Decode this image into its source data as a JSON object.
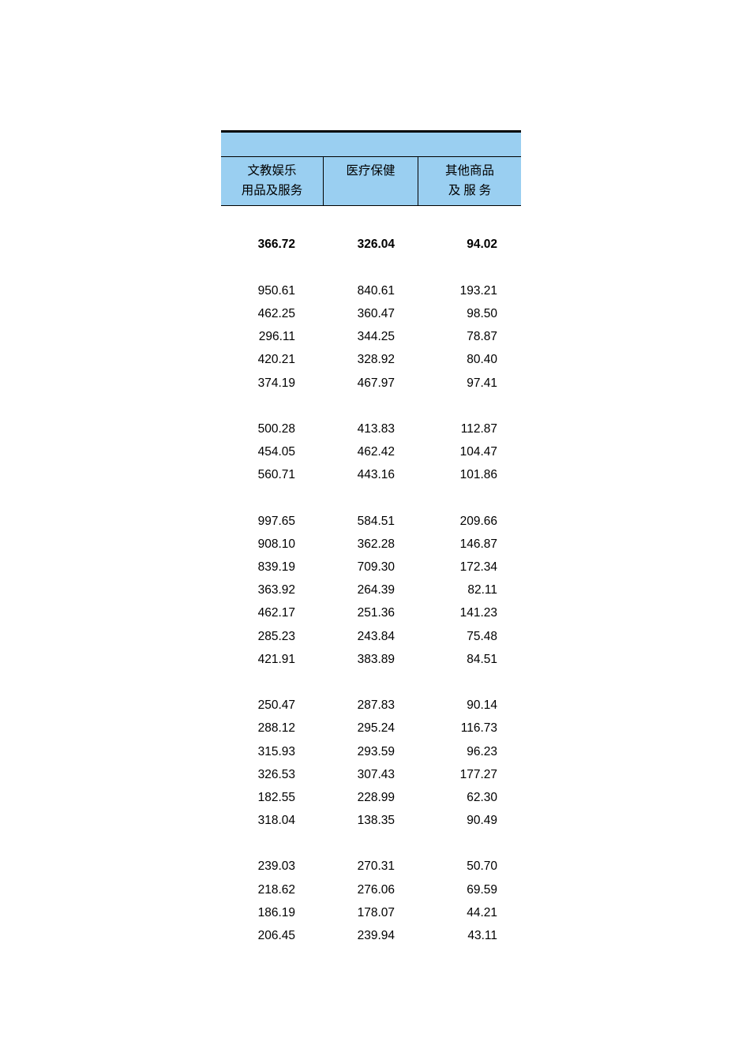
{
  "table": {
    "header_bg": "#9acff1",
    "border_color": "#000000",
    "top_line_height": 3,
    "columns": [
      {
        "line1": "文教娱乐",
        "line2": "用品及服务"
      },
      {
        "line1": "医疗保健",
        "line2": ""
      },
      {
        "line1": "其他商品",
        "line2": "及 服 务"
      }
    ],
    "groups": [
      {
        "rows": [
          {
            "bold": true,
            "cells": [
              "366.72",
              "326.04",
              "94.02"
            ]
          }
        ]
      },
      {
        "rows": [
          {
            "cells": [
              "950.61",
              "840.61",
              "193.21"
            ]
          },
          {
            "cells": [
              "462.25",
              "360.47",
              "98.50"
            ]
          },
          {
            "cells": [
              "296.11",
              "344.25",
              "78.87"
            ]
          },
          {
            "cells": [
              "420.21",
              "328.92",
              "80.40"
            ]
          },
          {
            "cells": [
              "374.19",
              "467.97",
              "97.41"
            ]
          }
        ]
      },
      {
        "rows": [
          {
            "cells": [
              "500.28",
              "413.83",
              "112.87"
            ]
          },
          {
            "cells": [
              "454.05",
              "462.42",
              "104.47"
            ]
          },
          {
            "cells": [
              "560.71",
              "443.16",
              "101.86"
            ]
          }
        ]
      },
      {
        "rows": [
          {
            "cells": [
              "997.65",
              "584.51",
              "209.66"
            ]
          },
          {
            "cells": [
              "908.10",
              "362.28",
              "146.87"
            ]
          },
          {
            "cells": [
              "839.19",
              "709.30",
              "172.34"
            ]
          },
          {
            "cells": [
              "363.92",
              "264.39",
              "82.11"
            ]
          },
          {
            "cells": [
              "462.17",
              "251.36",
              "141.23"
            ]
          },
          {
            "cells": [
              "285.23",
              "243.84",
              "75.48"
            ]
          },
          {
            "cells": [
              "421.91",
              "383.89",
              "84.51"
            ]
          }
        ]
      },
      {
        "rows": [
          {
            "cells": [
              "250.47",
              "287.83",
              "90.14"
            ]
          },
          {
            "cells": [
              "288.12",
              "295.24",
              "116.73"
            ]
          },
          {
            "cells": [
              "315.93",
              "293.59",
              "96.23"
            ]
          },
          {
            "cells": [
              "326.53",
              "307.43",
              "177.27"
            ]
          },
          {
            "cells": [
              "182.55",
              "228.99",
              "62.30"
            ]
          },
          {
            "cells": [
              "318.04",
              "138.35",
              "90.49"
            ]
          }
        ]
      },
      {
        "rows": [
          {
            "cells": [
              "239.03",
              "270.31",
              "50.70"
            ]
          },
          {
            "cells": [
              "218.62",
              "276.06",
              "69.59"
            ]
          },
          {
            "cells": [
              "186.19",
              "178.07",
              "44.21"
            ]
          },
          {
            "cells": [
              "206.45",
              "239.94",
              "43.11"
            ]
          }
        ]
      }
    ]
  }
}
